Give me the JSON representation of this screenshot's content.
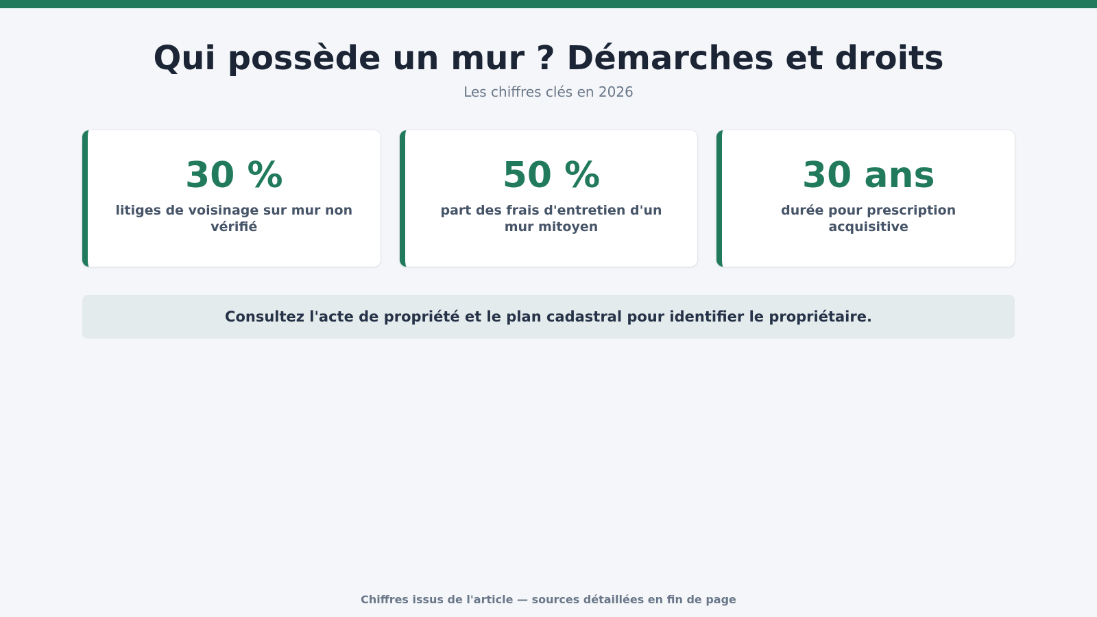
{
  "header": {
    "title": "Qui possède un mur ? Démarches et droits",
    "subtitle": "Les chiffres clés en 2026"
  },
  "stats": [
    {
      "value": "30 %",
      "label": "litiges de voisinage sur mur non vérifié"
    },
    {
      "value": "50 %",
      "label": "part des frais d'entretien d'un mur mitoyen"
    },
    {
      "value": "30 ans",
      "label": "durée pour prescription acquisitive"
    }
  ],
  "advice": {
    "text": "Consultez l'acte de propriété et le plan cadastral pour identifier le propriétaire."
  },
  "footer": {
    "note": "Chiffres issus de l'article — sources détaillées en fin de page"
  },
  "colors": {
    "accent": "#217a5b",
    "background": "#f4f6f9",
    "title": "#1c2535",
    "advice_background": "#e4ebec"
  }
}
